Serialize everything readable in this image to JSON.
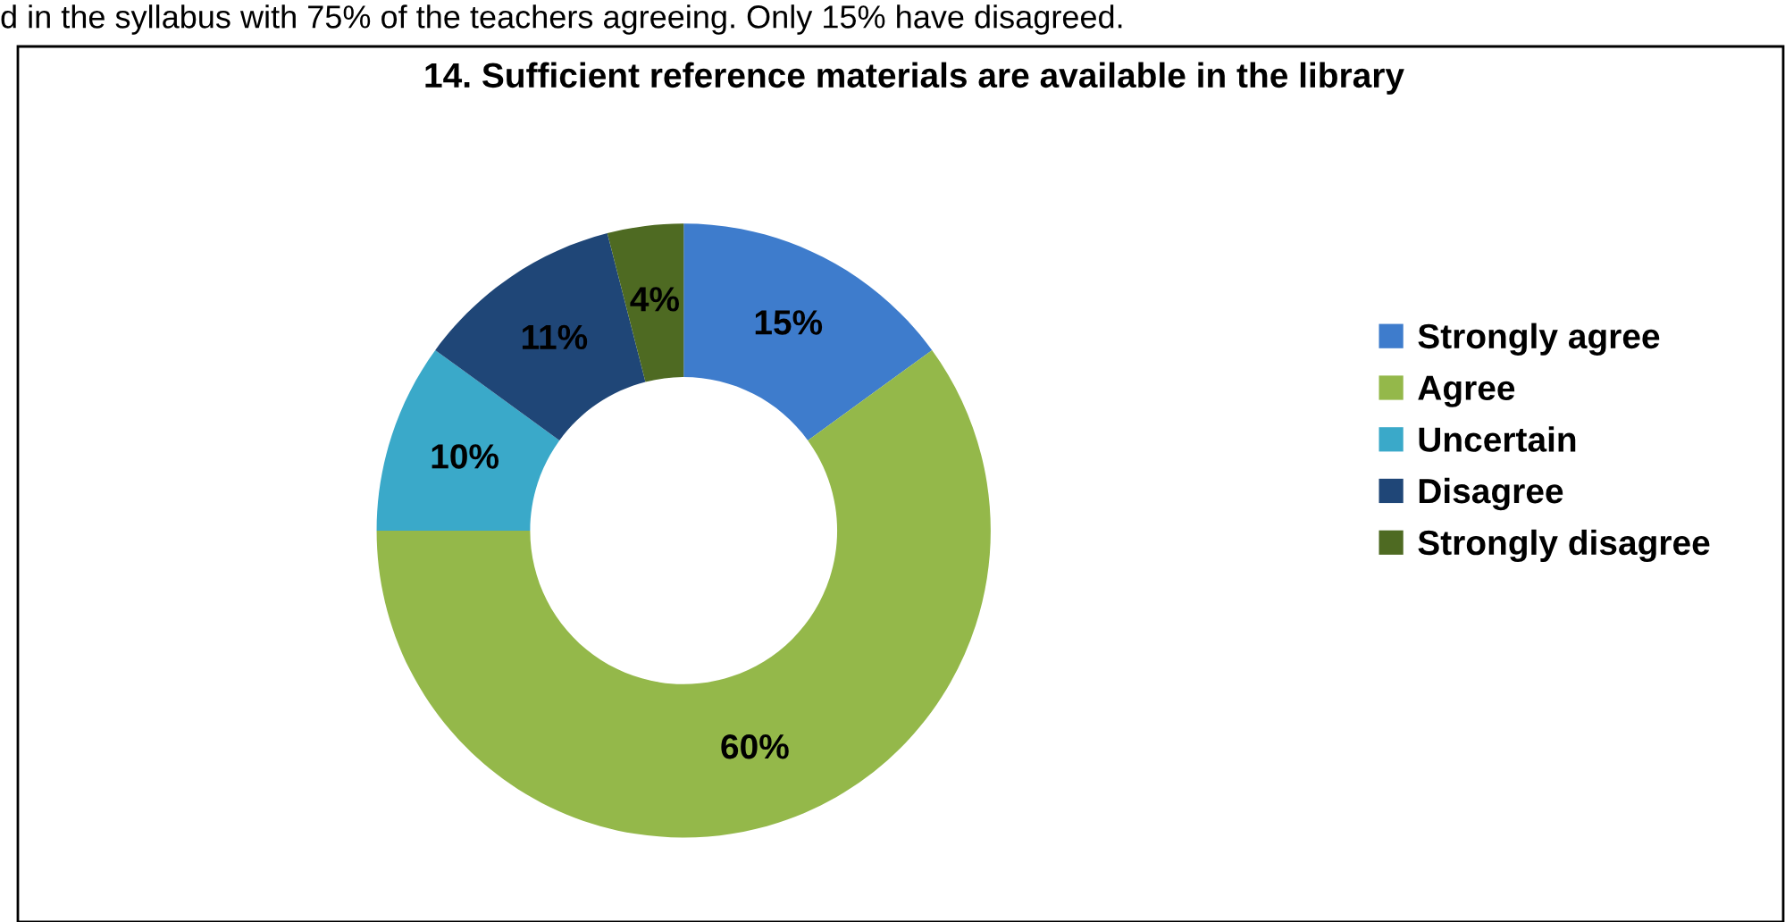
{
  "chart_data": {
    "type": "donut",
    "title": "14. Sufficient reference materials are available in the library",
    "annotations": [
      "d in the syllabus with 75% of the teachers agreeing. Only 15% have disagreed."
    ],
    "categories": [
      "Strongly agree",
      "Agree",
      "Uncertain",
      "Disagree",
      "Strongly disagree"
    ],
    "values": [
      15,
      60,
      10,
      11,
      4
    ],
    "value_labels": [
      "15%",
      "60%",
      "10%",
      "11%",
      "4%"
    ],
    "colors": [
      "#3e7ccc",
      "#94b84a",
      "#3aa9c9",
      "#1f4677",
      "#4e6a22"
    ],
    "legend": "right"
  }
}
